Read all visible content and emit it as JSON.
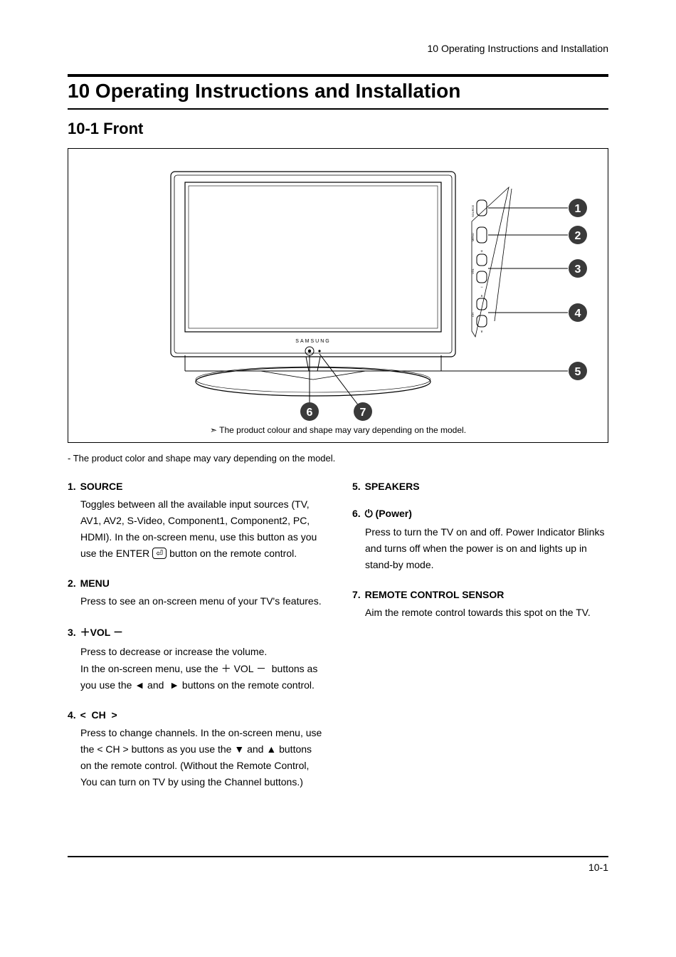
{
  "header": {
    "running": "10 Operating Instructions and Installation"
  },
  "chapter": {
    "title": "10 Operating Instructions and Installation"
  },
  "section": {
    "title": "10-1 Front"
  },
  "diagram": {
    "brand": "SAMSUNG",
    "callouts": [
      "1",
      "2",
      "3",
      "4",
      "5",
      "6",
      "7"
    ],
    "btn_labels": {
      "source": "SOURCE",
      "menu": "MENU",
      "vol": "VOL",
      "ch": "CH"
    },
    "callout_bg": "#3a3a3a",
    "callout_fg": "#ffffff",
    "caption_prefix": "➣ ",
    "caption": "The product colour and shape may vary depending on the model."
  },
  "under_note": "- The product color and shape may vary depending on the model.",
  "items_left": [
    {
      "num": "1.",
      "head": "SOURCE",
      "desc_html": "Toggles between all the available input sources (TV, AV1, AV2, S-Video, Component1, Component2, PC, HDMI). In the on-screen menu, use this button as you use the ENTER <span class='enter-btn'>⏎</span> button on the remote control."
    },
    {
      "num": "2.",
      "head": "MENU",
      "desc_html": "Press to see an on-screen menu of your TV's features."
    },
    {
      "num": "3.",
      "head": "＋VOL －",
      "desc_html": "Press to decrease or increase the volume.<br>In the on-screen menu, use the <span class='sym'>＋</span> VOL <span class='sym'>－</span>&nbsp; buttons as you use the <span class='sym'>◄</span> and &nbsp;<span class='sym'>►</span> buttons on the remote control."
    },
    {
      "num": "4.",
      "head": "&lt;&nbsp;&nbsp;CH&nbsp;&nbsp;&gt;",
      "desc_html": "Press to change channels. In the on-screen menu, use the &lt; CH &gt; buttons as you use the <span class='sym'>▼</span> and <span class='sym'>▲</span> buttons on the remote control. (Without the Remote Control, You can turn on TV by using the Channel buttons.)"
    }
  ],
  "items_right": [
    {
      "num": "5.",
      "head": " SPEAKERS",
      "desc_html": ""
    },
    {
      "num": "6.",
      "head": "⏻ (Power)",
      "desc_html": "Press to turn the TV on and off. Power Indicator Blinks and turns off when the power is on and lights up in stand-by mode."
    },
    {
      "num": "7.",
      "head": "REMOTE CONTROL SENSOR",
      "desc_html": "Aim the remote control towards this spot on the TV."
    }
  ],
  "page_number": "10-1"
}
